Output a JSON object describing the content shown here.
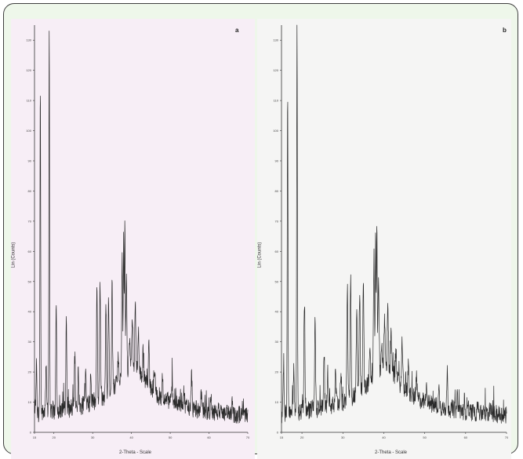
{
  "chart_data": [
    {
      "type": "line",
      "panel_label": "a",
      "ylabel": "Lin (Counts)",
      "xlabel": "2-Theta - Scale",
      "xlim": [
        15,
        70
      ],
      "ylim": [
        0,
        135
      ],
      "x_ticks": [
        15,
        20,
        30,
        40,
        50,
        60,
        70
      ],
      "y_ticks": [
        0,
        10,
        20,
        30,
        40,
        50,
        60,
        70,
        80,
        90,
        100,
        110,
        120,
        130
      ],
      "grid": false,
      "background": "#f7eef6",
      "line_color": "#2a2a2a",
      "series": [
        {
          "baseline": [
            [
              15,
              6
            ],
            [
              20,
              7
            ],
            [
              25,
              8
            ],
            [
              30,
              10
            ],
            [
              33,
              12
            ],
            [
              36,
              16
            ],
            [
              38,
              20
            ],
            [
              40,
              22
            ],
            [
              42,
              20
            ],
            [
              44,
              16
            ],
            [
              47,
              12
            ],
            [
              50,
              10
            ],
            [
              55,
              8
            ],
            [
              60,
              7
            ],
            [
              65,
              6
            ],
            [
              70,
              6
            ]
          ],
          "peaks": [
            [
              15.5,
              22
            ],
            [
              16.5,
              116
            ],
            [
              18.0,
              22
            ],
            [
              18.8,
              135
            ],
            [
              20.6,
              43
            ],
            [
              23.2,
              36
            ],
            [
              25.4,
              25
            ],
            [
              26.3,
              19
            ],
            [
              28.2,
              20
            ],
            [
              29.5,
              18
            ],
            [
              31.1,
              48
            ],
            [
              31.9,
              51
            ],
            [
              33.4,
              43
            ],
            [
              34.1,
              46
            ],
            [
              35.0,
              50
            ],
            [
              36.6,
              26
            ],
            [
              37.6,
              58
            ],
            [
              38.0,
              65
            ],
            [
              38.3,
              69
            ],
            [
              38.7,
              52
            ],
            [
              39.5,
              30
            ],
            [
              40.2,
              38
            ],
            [
              41.0,
              42
            ],
            [
              41.8,
              33
            ],
            [
              43.0,
              27
            ],
            [
              44.5,
              30
            ],
            [
              46.0,
              22
            ],
            [
              48.0,
              18
            ],
            [
              50.5,
              16
            ],
            [
              53.5,
              14
            ],
            [
              55.5,
              20
            ],
            [
              58.0,
              12
            ],
            [
              60.5,
              11
            ],
            [
              63.0,
              10
            ],
            [
              66.0,
              9
            ]
          ]
        }
      ]
    },
    {
      "type": "line",
      "panel_label": "b",
      "ylabel": "Lin (Counts)",
      "xlabel": "2-Theta - Scale",
      "xlim": [
        15,
        70
      ],
      "ylim": [
        0,
        135
      ],
      "x_ticks": [
        15,
        20,
        30,
        40,
        50,
        60,
        70
      ],
      "y_ticks": [
        0,
        10,
        20,
        30,
        40,
        50,
        60,
        70,
        80,
        90,
        100,
        110,
        120,
        130
      ],
      "grid": false,
      "background": "#f5f5f4",
      "line_color": "#2a2a2a",
      "series": [
        {
          "baseline": [
            [
              15,
              6
            ],
            [
              20,
              7
            ],
            [
              25,
              8
            ],
            [
              30,
              10
            ],
            [
              33,
              12
            ],
            [
              36,
              16
            ],
            [
              38,
              20
            ],
            [
              40,
              22
            ],
            [
              42,
              20
            ],
            [
              44,
              16
            ],
            [
              47,
              12
            ],
            [
              50,
              10
            ],
            [
              55,
              8
            ],
            [
              60,
              7
            ],
            [
              65,
              6
            ],
            [
              70,
              6
            ]
          ],
          "peaks": [
            [
              15.5,
              22
            ],
            [
              16.5,
              116
            ],
            [
              18.0,
              22
            ],
            [
              18.8,
              135
            ],
            [
              20.6,
              43
            ],
            [
              23.2,
              36
            ],
            [
              25.4,
              25
            ],
            [
              26.3,
              19
            ],
            [
              28.2,
              20
            ],
            [
              29.5,
              18
            ],
            [
              31.1,
              48
            ],
            [
              31.9,
              51
            ],
            [
              33.4,
              43
            ],
            [
              34.1,
              46
            ],
            [
              35.0,
              50
            ],
            [
              36.6,
              26
            ],
            [
              37.6,
              58
            ],
            [
              38.0,
              65
            ],
            [
              38.3,
              69
            ],
            [
              38.7,
              52
            ],
            [
              39.5,
              30
            ],
            [
              40.2,
              38
            ],
            [
              41.0,
              42
            ],
            [
              41.8,
              33
            ],
            [
              43.0,
              27
            ],
            [
              44.5,
              30
            ],
            [
              46.0,
              22
            ],
            [
              48.0,
              18
            ],
            [
              50.5,
              16
            ],
            [
              53.5,
              14
            ],
            [
              55.5,
              20
            ],
            [
              58.0,
              12
            ],
            [
              60.5,
              11
            ],
            [
              63.0,
              10
            ],
            [
              66.0,
              9
            ]
          ]
        }
      ]
    }
  ]
}
